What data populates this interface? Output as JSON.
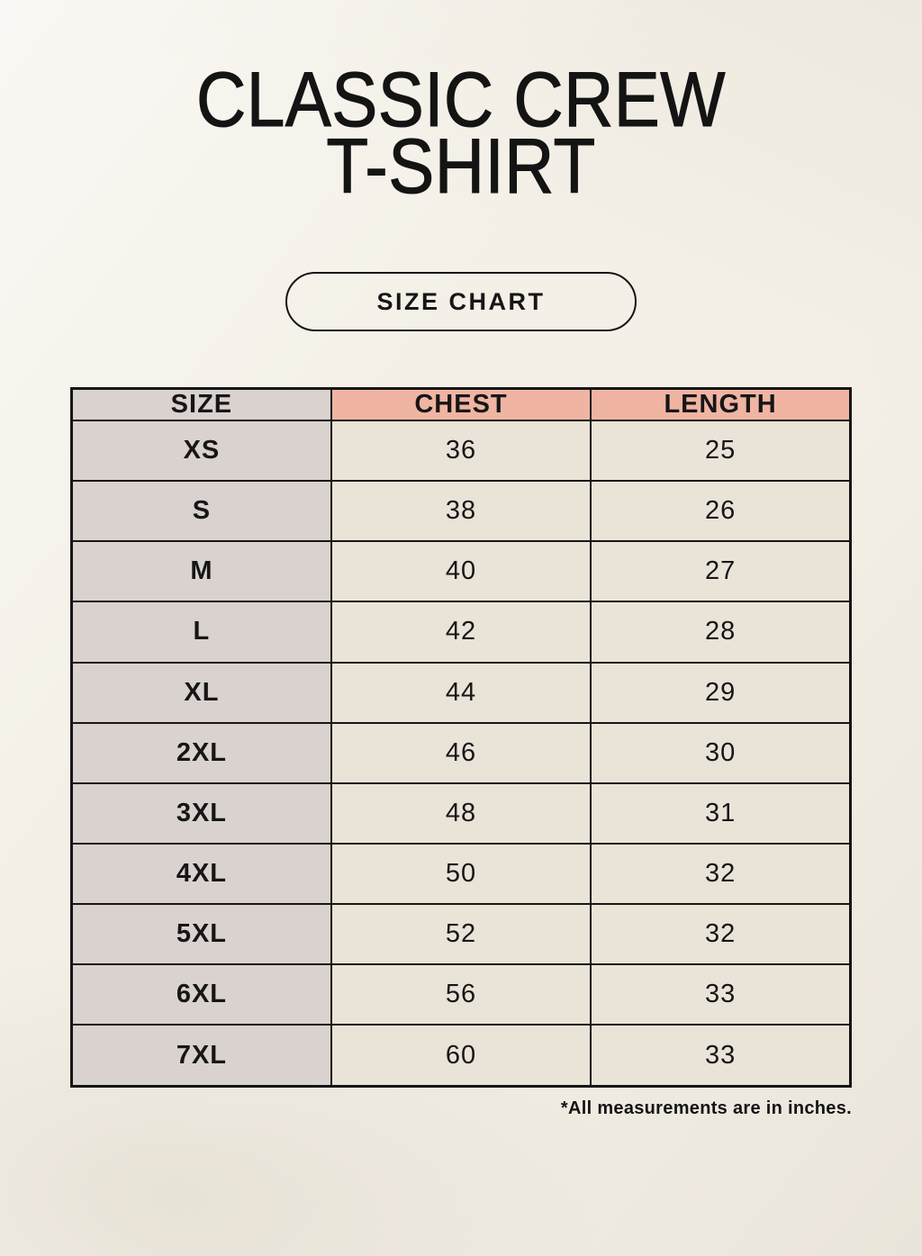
{
  "page": {
    "title_line1": "CLASSIC CREW",
    "title_line2": "T-SHIRT",
    "size_chart_button_label": "SIZE CHART",
    "footnote": "*All measurements are in inches."
  },
  "colors": {
    "page_bg": "#f4f0e7",
    "header_pink": "#f0b4a3",
    "size_column_taupe": "#d9d2ce",
    "cell_beige": "#eae3d7",
    "table_border": "#161616"
  },
  "chart_data": {
    "type": "table",
    "title": "CLASSIC CREW T-SHIRT",
    "subtitle": "SIZE CHART",
    "columns": [
      "SIZE",
      "CHEST",
      "LENGTH"
    ],
    "rows": [
      [
        "XS",
        "36",
        "25"
      ],
      [
        "S",
        "38",
        "26"
      ],
      [
        "M",
        "40",
        "27"
      ],
      [
        "L",
        "42",
        "28"
      ],
      [
        "XL",
        "44",
        "29"
      ],
      [
        "2XL",
        "46",
        "30"
      ],
      [
        "3XL",
        "48",
        "31"
      ],
      [
        "4XL",
        "50",
        "32"
      ],
      [
        "5XL",
        "52",
        "32"
      ],
      [
        "6XL",
        "56",
        "33"
      ],
      [
        "7XL",
        "60",
        "33"
      ]
    ],
    "units_note": "*All measurements are in inches."
  }
}
